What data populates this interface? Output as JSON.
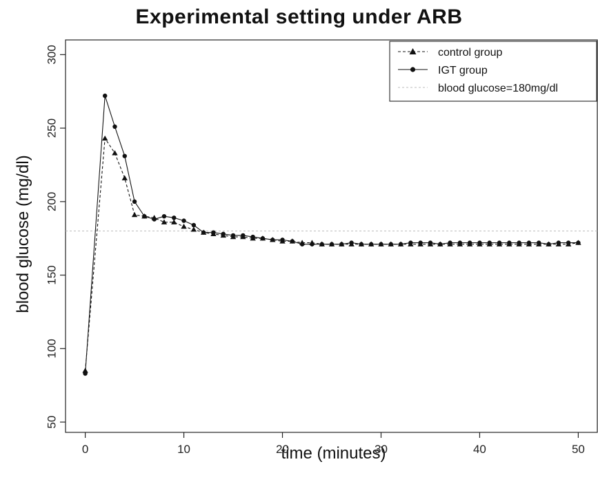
{
  "chart_data": {
    "type": "line",
    "title": "Experimental setting under ARB",
    "xlabel": "time (minutes)",
    "ylabel": "blood glucose (mg/dl)",
    "xlim": [
      -2,
      52
    ],
    "ylim": [
      43,
      310
    ],
    "xticks": [
      0,
      10,
      20,
      30,
      40,
      50
    ],
    "yticks": [
      50,
      100,
      150,
      200,
      250,
      300
    ],
    "grid": false,
    "legend_position": "top-right",
    "reference_line": {
      "label": "blood glucose=180mg/dl",
      "y": 180,
      "color": "#bbbbbb"
    },
    "x": [
      0,
      2,
      3,
      4,
      5,
      6,
      7,
      8,
      9,
      10,
      11,
      12,
      13,
      14,
      15,
      16,
      17,
      18,
      19,
      20,
      21,
      22,
      23,
      24,
      25,
      26,
      27,
      28,
      29,
      30,
      31,
      32,
      33,
      34,
      35,
      36,
      37,
      38,
      39,
      40,
      41,
      42,
      43,
      44,
      45,
      46,
      47,
      48,
      49,
      50
    ],
    "series": [
      {
        "name": "control group",
        "marker": "triangle",
        "dash": "dashed",
        "color": "#111111",
        "values": [
          85,
          243,
          233,
          216,
          191,
          190,
          189,
          186,
          186,
          183,
          181,
          179,
          178,
          177,
          176,
          176,
          175,
          175,
          174,
          173,
          173,
          172,
          172,
          171,
          171,
          171,
          171,
          171,
          171,
          171,
          171,
          171,
          171,
          171,
          171,
          171,
          171,
          171,
          171,
          171,
          171,
          171,
          171,
          171,
          171,
          171,
          171,
          171,
          171,
          172
        ]
      },
      {
        "name": "IGT group",
        "marker": "circle",
        "dash": "solid",
        "color": "#111111",
        "values": [
          83,
          272,
          251,
          231,
          200,
          190,
          188,
          190,
          189,
          187,
          184,
          179,
          179,
          178,
          177,
          177,
          176,
          175,
          174,
          174,
          173,
          171,
          171,
          171,
          171,
          171,
          172,
          171,
          171,
          171,
          171,
          171,
          172,
          172,
          172,
          171,
          172,
          172,
          172,
          172,
          172,
          172,
          172,
          172,
          172,
          172,
          171,
          172,
          172,
          172
        ]
      }
    ]
  }
}
